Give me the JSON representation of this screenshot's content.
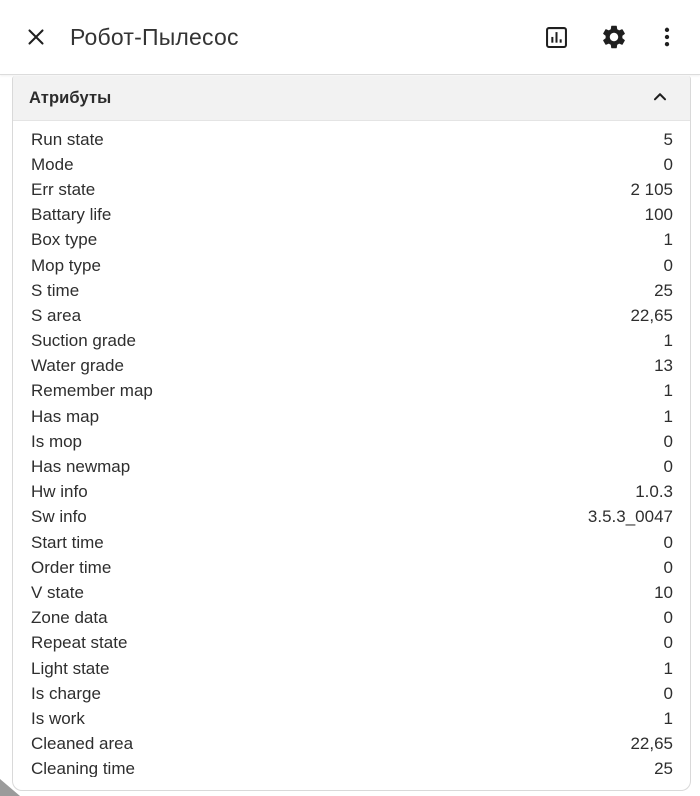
{
  "header": {
    "title": "Робот-Пылесос",
    "close_icon": "close",
    "actions": [
      {
        "id": "chart",
        "icon": "bar-chart"
      },
      {
        "id": "settings",
        "icon": "gear"
      },
      {
        "id": "menu",
        "icon": "more-vert"
      }
    ]
  },
  "panel": {
    "title": "Атрибуты",
    "collapse_icon": "chevron-up",
    "state": "expanded",
    "attributes": [
      {
        "label": "Run state",
        "value": "5"
      },
      {
        "label": "Mode",
        "value": "0"
      },
      {
        "label": "Err state",
        "value": "2 105"
      },
      {
        "label": "Battary life",
        "value": "100"
      },
      {
        "label": "Box type",
        "value": "1"
      },
      {
        "label": "Mop type",
        "value": "0"
      },
      {
        "label": "S time",
        "value": "25"
      },
      {
        "label": "S area",
        "value": "22,65"
      },
      {
        "label": "Suction grade",
        "value": "1"
      },
      {
        "label": "Water grade",
        "value": "13"
      },
      {
        "label": "Remember map",
        "value": "1"
      },
      {
        "label": "Has map",
        "value": "1"
      },
      {
        "label": "Is mop",
        "value": "0"
      },
      {
        "label": "Has newmap",
        "value": "0"
      },
      {
        "label": "Hw info",
        "value": "1.0.3"
      },
      {
        "label": "Sw info",
        "value": "3.5.3_0047"
      },
      {
        "label": "Start time",
        "value": "0"
      },
      {
        "label": "Order time",
        "value": "0"
      },
      {
        "label": "V state",
        "value": "10"
      },
      {
        "label": "Zone data",
        "value": "0"
      },
      {
        "label": "Repeat state",
        "value": "0"
      },
      {
        "label": "Light state",
        "value": "1"
      },
      {
        "label": "Is charge",
        "value": "0"
      },
      {
        "label": "Is work",
        "value": "1"
      },
      {
        "label": "Cleaned area",
        "value": "22,65"
      },
      {
        "label": "Cleaning time",
        "value": "25"
      }
    ]
  },
  "colors": {
    "panel_header_bg": "#f2f2f2",
    "text": "#2e2e2e",
    "icon": "#1f1f1f",
    "divider": "#dcdcdc"
  }
}
